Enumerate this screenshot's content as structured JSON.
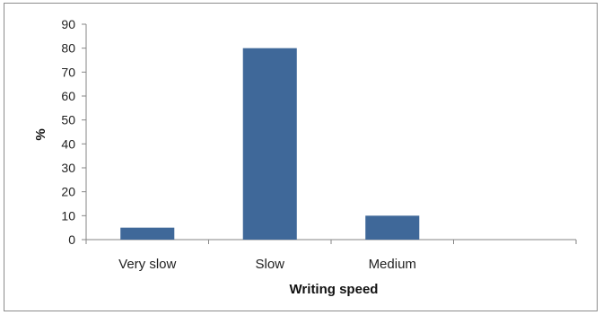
{
  "chart_data": {
    "type": "bar",
    "title": "",
    "categories": [
      "Very slow",
      "Slow",
      "Medium",
      ""
    ],
    "values": [
      5,
      80,
      10,
      null
    ],
    "xlabel": "Writing speed",
    "ylabel": "%",
    "ylim": [
      0,
      90
    ],
    "yticks": [
      0,
      10,
      20,
      30,
      40,
      50,
      60,
      70,
      80,
      90
    ],
    "grid": false,
    "legend": "none",
    "bar_color": "#3f6899"
  }
}
